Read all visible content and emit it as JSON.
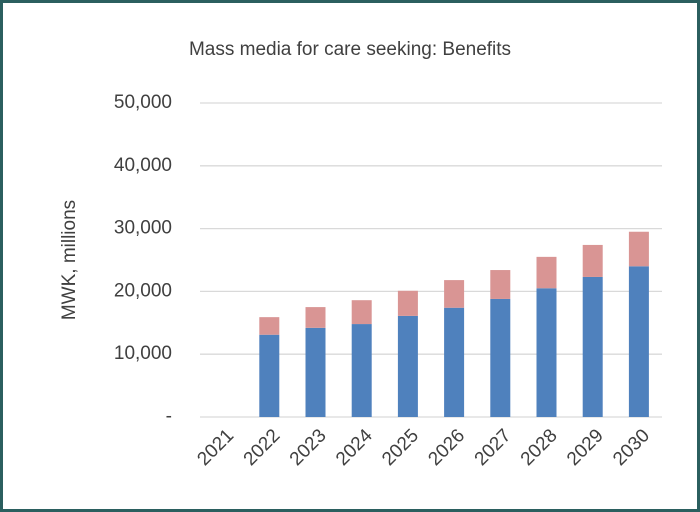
{
  "chart_data": {
    "type": "stacked_bar",
    "title": "Mass media for care seeking: Benefits",
    "y_label": "MWK, millions",
    "categories": [
      "2021",
      "2022",
      "2023",
      "2024",
      "2025",
      "2026",
      "2027",
      "2028",
      "2029",
      "2030"
    ],
    "series": [
      {
        "color": "#4f81bd",
        "values": [
          0,
          13100,
          14200,
          14800,
          16100,
          17400,
          18800,
          20500,
          22300,
          24000
        ]
      },
      {
        "color": "#d99594",
        "values": [
          0,
          2800,
          3300,
          3800,
          4000,
          4400,
          4600,
          5000,
          5100,
          5500
        ]
      }
    ],
    "ylim": [
      0,
      50000
    ],
    "yticks": [
      {
        "value": 0,
        "label": "-"
      },
      {
        "value": 10000,
        "label": "10,000"
      },
      {
        "value": 20000,
        "label": "20,000"
      },
      {
        "value": 30000,
        "label": "30,000"
      },
      {
        "value": 40000,
        "label": "40,000"
      },
      {
        "value": 50000,
        "label": "50,000"
      }
    ],
    "grid": true
  }
}
